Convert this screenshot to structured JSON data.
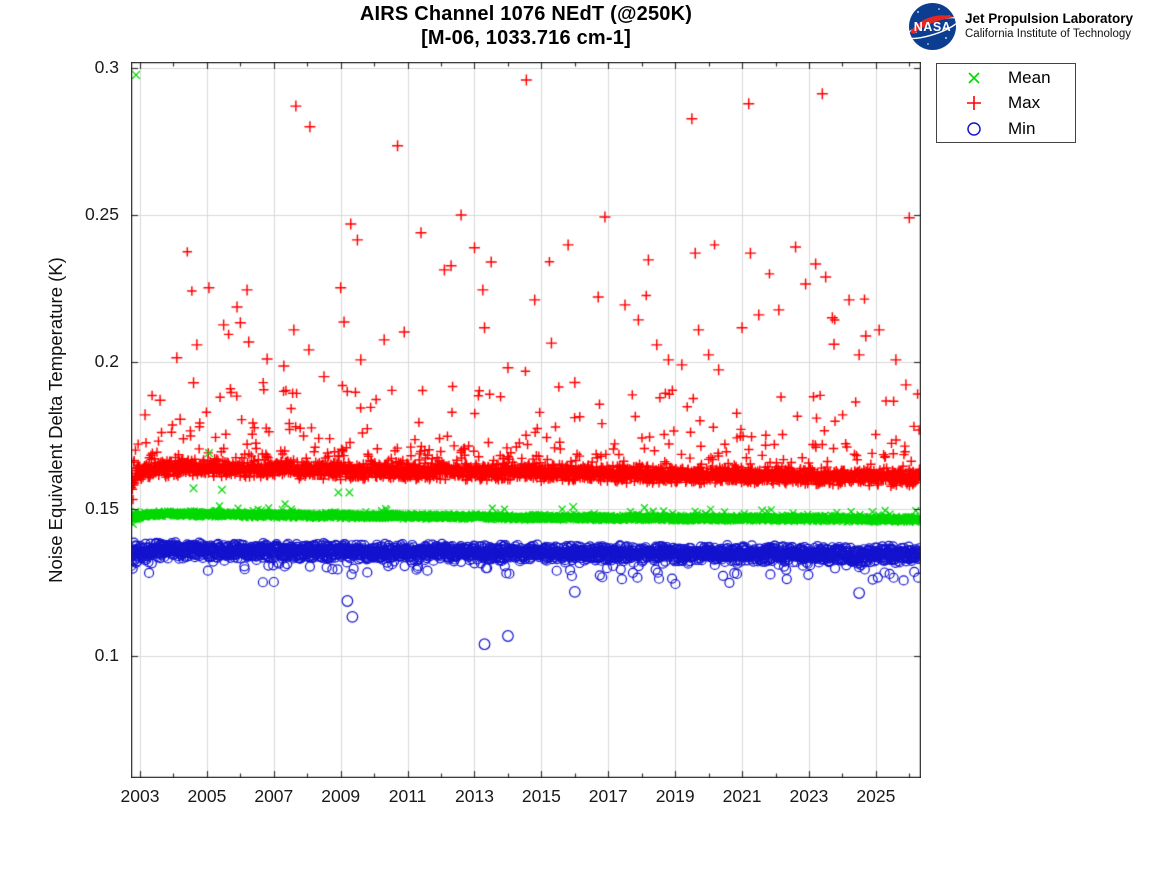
{
  "header": {
    "title_line1": "AIRS Channel 1076 NEdT (@250K)",
    "title_line2": "[M-06, 1033.716 cm-1]",
    "logo": {
      "org": "NASA",
      "line1": "Jet Propulsion Laboratory",
      "line2": "California Institute of Technology",
      "nasa_blue": "#0b3d91",
      "nasa_red": "#e8251f"
    }
  },
  "chart_data": {
    "type": "scatter",
    "title": "AIRS Channel 1076 NEdT (@250K)",
    "subtitle": "[M-06, 1033.716 cm-1]",
    "xlabel": "",
    "ylabel": "Noise Equivalent Delta Temperature (K)",
    "x_range": [
      2002.73,
      2026.35
    ],
    "y_range": [
      0.0585,
      0.302
    ],
    "x_major_ticks": [
      2003,
      2005,
      2007,
      2009,
      2011,
      2013,
      2015,
      2017,
      2019,
      2021,
      2023,
      2025
    ],
    "x_tick_labels": [
      "2003",
      "2005",
      "2007",
      "2009",
      "2011",
      "2013",
      "2015",
      "2017",
      "2019",
      "2021",
      "2023",
      "2025"
    ],
    "x_minor_ticks": [
      2004,
      2006,
      2008,
      2010,
      2012,
      2014,
      2016,
      2018,
      2020,
      2022,
      2024,
      2026
    ],
    "y_major_ticks": [
      0.1,
      0.15,
      0.2,
      0.25,
      0.3
    ],
    "y_tick_labels": [
      "0.1",
      "0.15",
      "0.2",
      "0.25",
      "0.3"
    ],
    "grid": true,
    "grid_color": "#d9d9d9",
    "axis_color": "#262626",
    "legend": {
      "position": "outside-top-right",
      "entries": [
        {
          "label": "Mean",
          "marker": "x",
          "color": "#00d900"
        },
        {
          "label": "Max",
          "marker": "+",
          "color": "#ff0000"
        },
        {
          "label": "Min",
          "marker": "o",
          "color": "#1414cf"
        }
      ]
    },
    "sampling": {
      "points_per_series": 2600,
      "seed": 7
    },
    "series": [
      {
        "name": "Max",
        "marker": "+",
        "color": "#ff0000",
        "band": {
          "knots": [
            [
              2002.75,
              0.158
            ],
            [
              2002.95,
              0.1625
            ],
            [
              2003.6,
              0.164
            ],
            [
              2006,
              0.1637
            ],
            [
              2010,
              0.163
            ],
            [
              2014,
              0.1626
            ],
            [
              2018,
              0.1619
            ],
            [
              2022,
              0.1613
            ],
            [
              2026.33,
              0.1607
            ]
          ],
          "half_width": 0.0032,
          "start_widen": 3.2,
          "start_until": 2002.87,
          "tail_prob": 0.16,
          "tail_scale": 0.0085,
          "tail_cap": 0.027,
          "tail_dir": 1,
          "rare_prob": 0.003,
          "rare_range": [
            0.19,
            0.248
          ]
        },
        "outliers": [
          [
            2003.15,
            0.182
          ],
          [
            2003.6,
            0.187
          ],
          [
            2004.1,
            0.2014
          ],
          [
            2004.2,
            0.1805
          ],
          [
            2004.6,
            0.1929
          ],
          [
            2004.7,
            0.2058
          ],
          [
            2005.06,
            0.2252
          ],
          [
            2005.5,
            0.2126
          ],
          [
            2005.9,
            0.2187
          ],
          [
            2006.0,
            0.2133
          ],
          [
            2006.2,
            0.2245
          ],
          [
            2006.25,
            0.2068
          ],
          [
            2006.8,
            0.201
          ],
          [
            2007.3,
            0.1986
          ],
          [
            2007.66,
            0.287
          ],
          [
            2007.6,
            0.2109
          ],
          [
            2008.08,
            0.28
          ],
          [
            2008.05,
            0.2041
          ],
          [
            2008.5,
            0.195
          ],
          [
            2009.0,
            0.2252
          ],
          [
            2009.1,
            0.2136
          ],
          [
            2009.3,
            0.2469
          ],
          [
            2009.5,
            0.2415
          ],
          [
            2009.6,
            0.2007
          ],
          [
            2010.3,
            0.2075
          ],
          [
            2010.7,
            0.2735
          ],
          [
            2010.9,
            0.2102
          ],
          [
            2011.4,
            0.2439
          ],
          [
            2012.1,
            0.2313
          ],
          [
            2012.3,
            0.2327
          ],
          [
            2012.6,
            0.25
          ],
          [
            2013.0,
            0.2388
          ],
          [
            2013.25,
            0.2245
          ],
          [
            2013.3,
            0.2116
          ],
          [
            2013.5,
            0.234
          ],
          [
            2014.0,
            0.198
          ],
          [
            2014.55,
            0.2959
          ],
          [
            2014.8,
            0.2211
          ],
          [
            2015.3,
            0.2064
          ],
          [
            2015.8,
            0.2398
          ],
          [
            2016.0,
            0.193
          ],
          [
            2016.7,
            0.2221
          ],
          [
            2016.9,
            0.2493
          ],
          [
            2017.5,
            0.2194
          ],
          [
            2017.9,
            0.2143
          ],
          [
            2018.2,
            0.2347
          ],
          [
            2018.45,
            0.2058
          ],
          [
            2018.8,
            0.2007
          ],
          [
            2019.2,
            0.199
          ],
          [
            2019.5,
            0.2827
          ],
          [
            2019.6,
            0.237
          ],
          [
            2019.7,
            0.2109
          ],
          [
            2020.0,
            0.2024
          ],
          [
            2020.3,
            0.1973
          ],
          [
            2021.0,
            0.2116
          ],
          [
            2021.2,
            0.2878
          ],
          [
            2021.25,
            0.237
          ],
          [
            2021.5,
            0.216
          ],
          [
            2022.1,
            0.2177
          ],
          [
            2022.6,
            0.2391
          ],
          [
            2022.9,
            0.2265
          ],
          [
            2023.2,
            0.2333
          ],
          [
            2023.4,
            0.2912
          ],
          [
            2023.5,
            0.2289
          ],
          [
            2023.7,
            0.215
          ],
          [
            2023.75,
            0.206
          ],
          [
            2024.2,
            0.2211
          ],
          [
            2024.5,
            0.2024
          ],
          [
            2024.7,
            0.2088
          ],
          [
            2025.1,
            0.2109
          ],
          [
            2025.6,
            0.2007
          ],
          [
            2025.9,
            0.1922
          ],
          [
            2026.0,
            0.249
          ]
        ]
      },
      {
        "name": "Mean",
        "marker": "x",
        "color": "#00d900",
        "band": {
          "knots": [
            [
              2002.75,
              0.1468
            ],
            [
              2003.1,
              0.1478
            ],
            [
              2003.6,
              0.1484
            ],
            [
              2005,
              0.1482
            ],
            [
              2008,
              0.1478
            ],
            [
              2012,
              0.1474
            ],
            [
              2016,
              0.147
            ],
            [
              2020,
              0.1468
            ],
            [
              2023,
              0.1467
            ],
            [
              2026.33,
              0.1464
            ]
          ],
          "half_width": 0.0011,
          "start_widen": 2.2,
          "start_until": 2002.9,
          "tail_prob": 0.05,
          "tail_scale": 0.0012,
          "tail_cap": 0.003,
          "tail_dir": 1,
          "rare_prob": 0,
          "rare_range": [
            0,
            0
          ]
        },
        "outliers": [
          [
            2002.88,
            0.2976
          ],
          [
            2004.6,
            0.157
          ],
          [
            2005.06,
            0.169
          ],
          [
            2005.45,
            0.1565
          ],
          [
            2008.93,
            0.1556
          ],
          [
            2009.26,
            0.1556
          ],
          [
            2015.95,
            0.1507
          ],
          [
            2021.6,
            0.1495
          ],
          [
            2024.9,
            0.149
          ]
        ]
      },
      {
        "name": "Min",
        "marker": "o",
        "color": "#1414cf",
        "band": {
          "knots": [
            [
              2002.75,
              0.1332
            ],
            [
              2003.0,
              0.1352
            ],
            [
              2003.6,
              0.136
            ],
            [
              2006,
              0.1357
            ],
            [
              2010,
              0.1353
            ],
            [
              2014,
              0.1352
            ],
            [
              2018,
              0.1349
            ],
            [
              2022,
              0.1347
            ],
            [
              2026.33,
              0.1344
            ]
          ],
          "half_width": 0.003,
          "start_widen": 2.0,
          "start_until": 2002.9,
          "tail_prob": 0.1,
          "tail_scale": 0.003,
          "tail_cap": 0.0085,
          "tail_dir": -1,
          "rare_prob": 0,
          "rare_range": [
            0,
            0
          ]
        },
        "outliers": [
          [
            2009.2,
            0.1187
          ],
          [
            2009.35,
            0.1133
          ],
          [
            2013.3,
            0.104
          ],
          [
            2014.0,
            0.1068
          ],
          [
            2016.0,
            0.1218
          ],
          [
            2024.5,
            0.1214
          ]
        ]
      }
    ]
  }
}
